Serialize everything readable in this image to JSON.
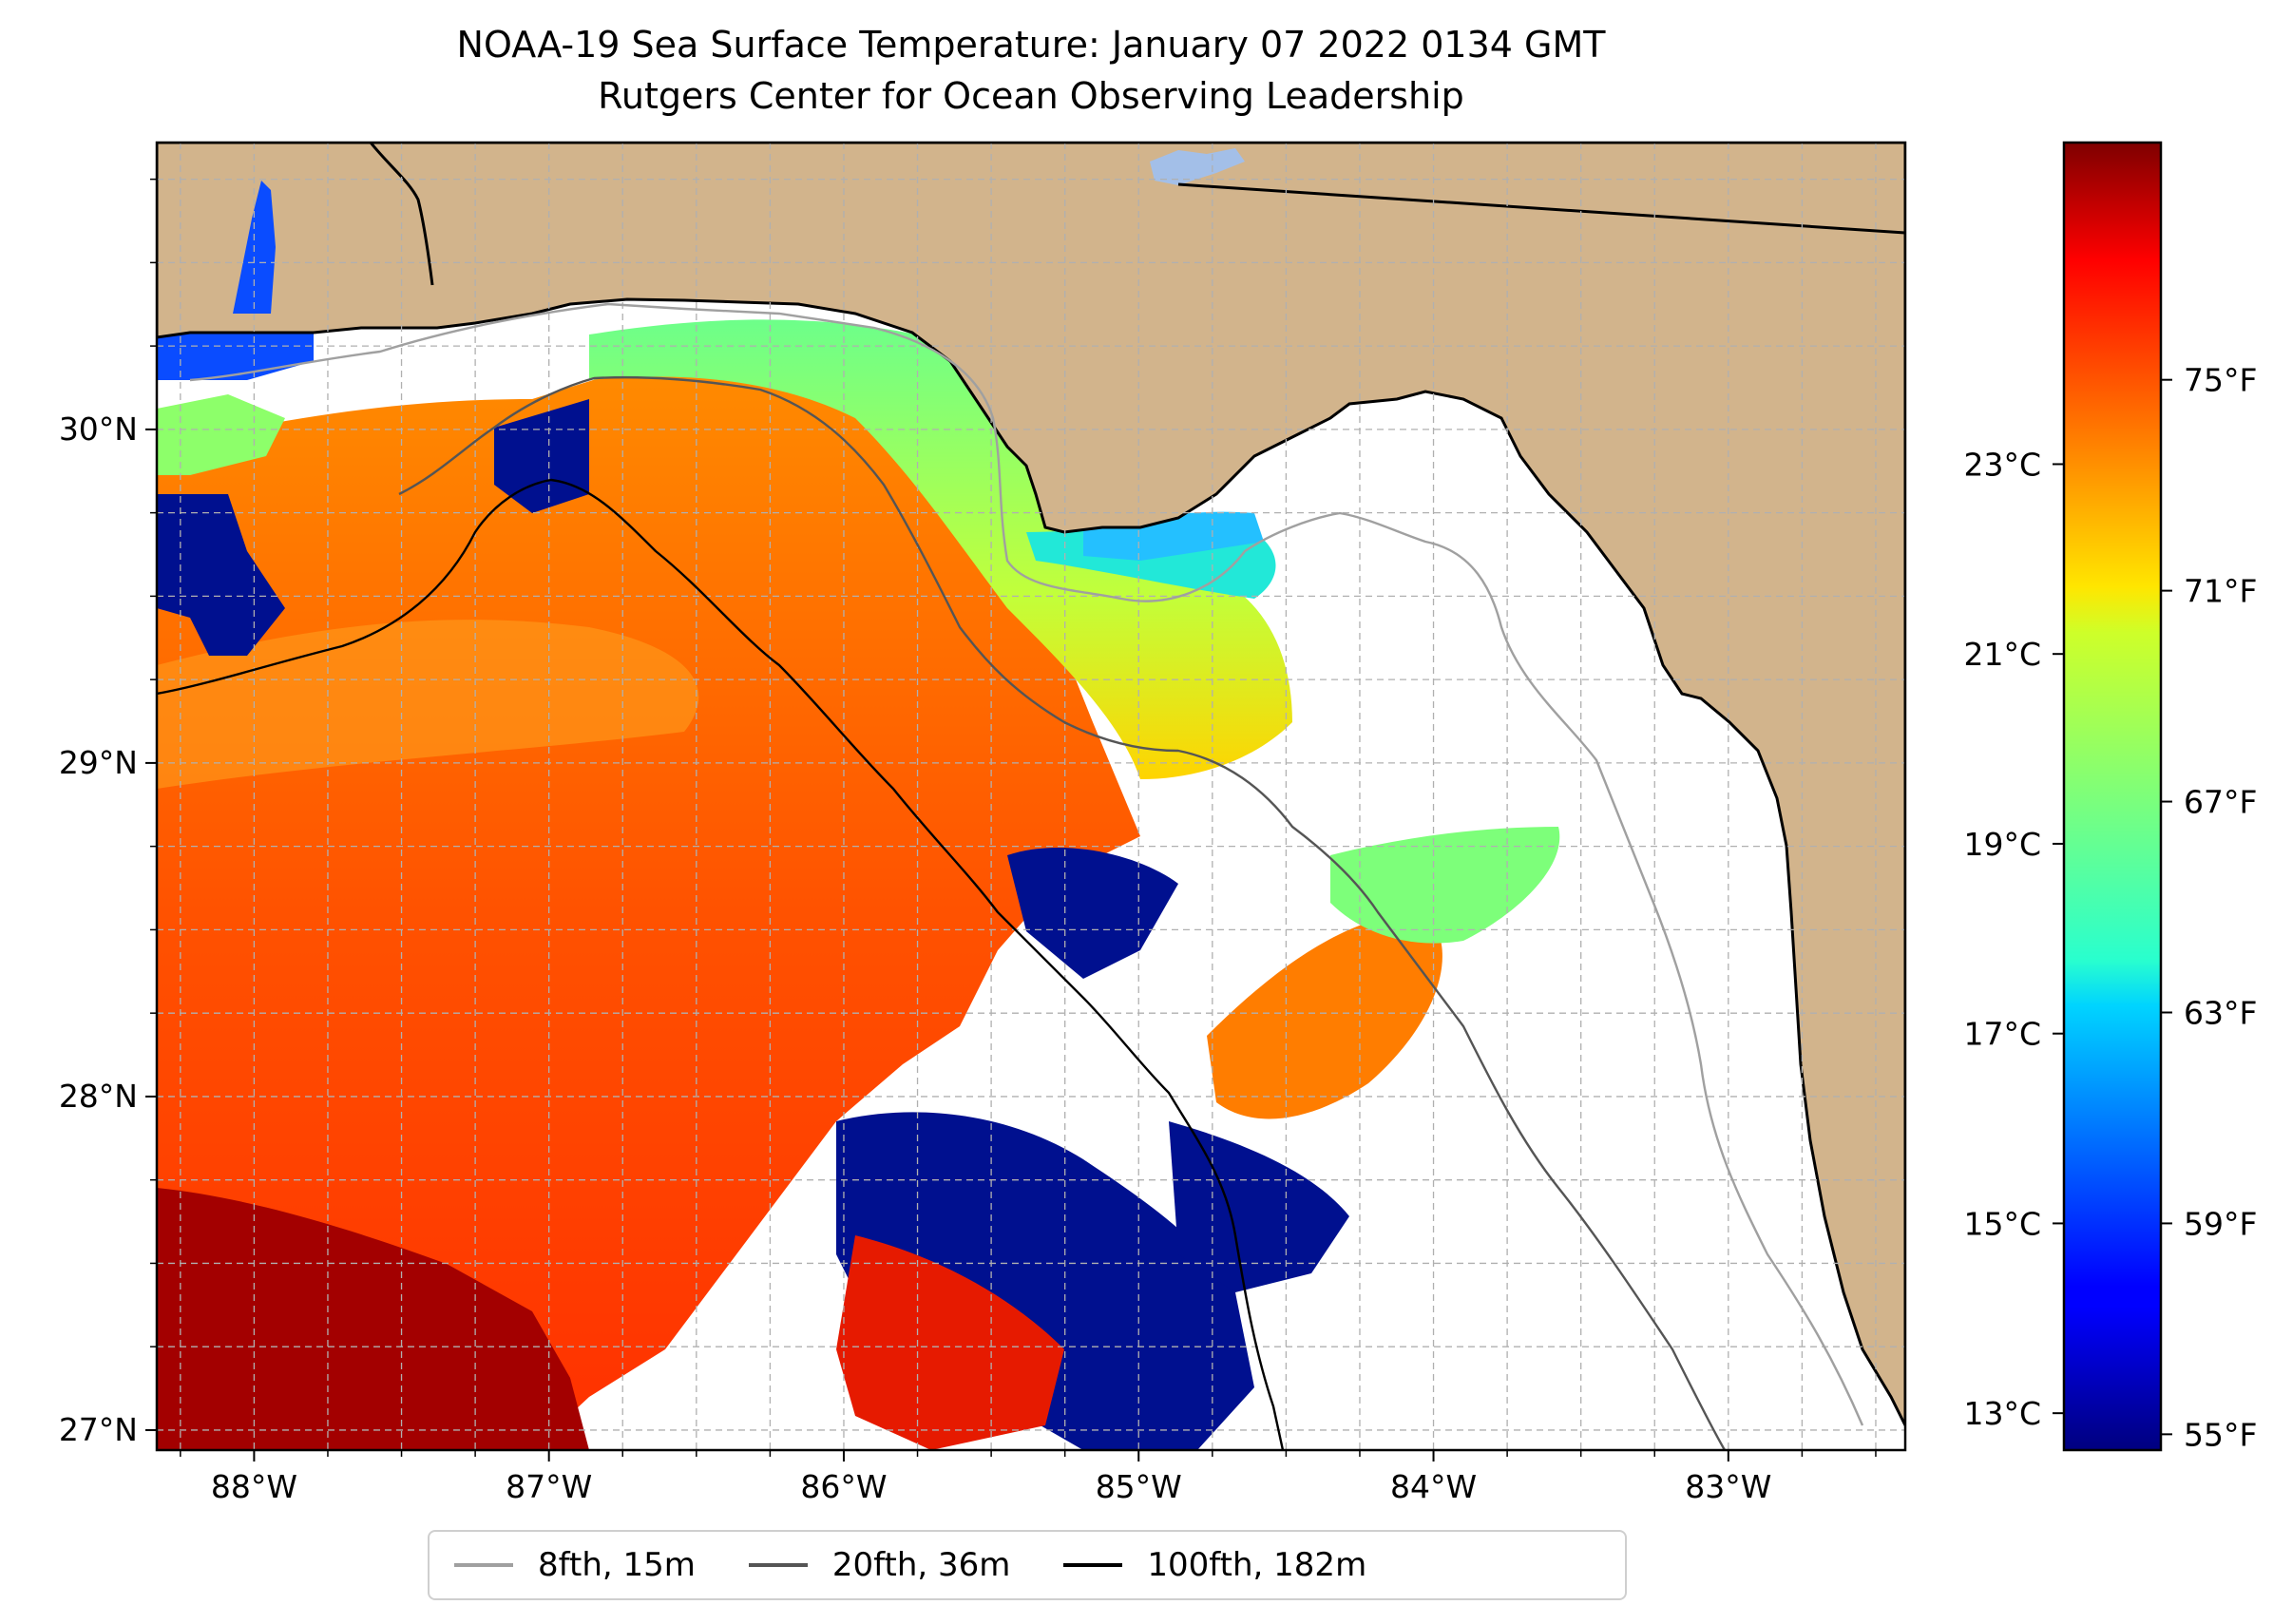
{
  "title": "NOAA-19 Sea Surface Temperature: January 07 2022 0134 GMT",
  "subtitle": "Rutgers Center for Ocean Observing Leadership",
  "colors": {
    "land": "#d2b48c",
    "grid": "#b0b0b0",
    "coast": "#000000",
    "lake": "#a3bfe8"
  },
  "map": {
    "lon_range": [
      -88.33,
      -82.4
    ],
    "lat_range": [
      26.94,
      30.86
    ],
    "lon_ticks": [
      {
        "value": -88,
        "label": "88°W"
      },
      {
        "value": -87,
        "label": "87°W"
      },
      {
        "value": -86,
        "label": "86°W"
      },
      {
        "value": -85,
        "label": "85°W"
      },
      {
        "value": -84,
        "label": "84°W"
      },
      {
        "value": -83,
        "label": "83°W"
      }
    ],
    "lat_ticks": [
      {
        "value": 27,
        "label": "27°N"
      },
      {
        "value": 28,
        "label": "28°N"
      },
      {
        "value": 29,
        "label": "29°N"
      },
      {
        "value": 30,
        "label": "30°N"
      }
    ],
    "grid": "dashed, every 0.25°"
  },
  "colorbar": {
    "colormap": "jet",
    "range_f": [
      54.7,
      79.5
    ],
    "f_ticks": [
      {
        "value": 55,
        "label": "55°F"
      },
      {
        "value": 59,
        "label": "59°F"
      },
      {
        "value": 63,
        "label": "63°F"
      },
      {
        "value": 67,
        "label": "67°F"
      },
      {
        "value": 71,
        "label": "71°F"
      },
      {
        "value": 75,
        "label": "75°F"
      }
    ],
    "c_ticks": [
      {
        "value_f": 55.4,
        "label": "13°C"
      },
      {
        "value_f": 59.0,
        "label": "15°C"
      },
      {
        "value_f": 62.6,
        "label": "17°C"
      },
      {
        "value_f": 66.2,
        "label": "19°C"
      },
      {
        "value_f": 69.8,
        "label": "21°C"
      },
      {
        "value_f": 73.4,
        "label": "23°C"
      }
    ]
  },
  "legend": {
    "placement": "below map",
    "items": [
      {
        "label": "8fth, 15m",
        "color": "#a0a0a0"
      },
      {
        "label": "20fth, 36m",
        "color": "#555555"
      },
      {
        "label": "100fth, 182m",
        "color": "#000000"
      }
    ]
  }
}
